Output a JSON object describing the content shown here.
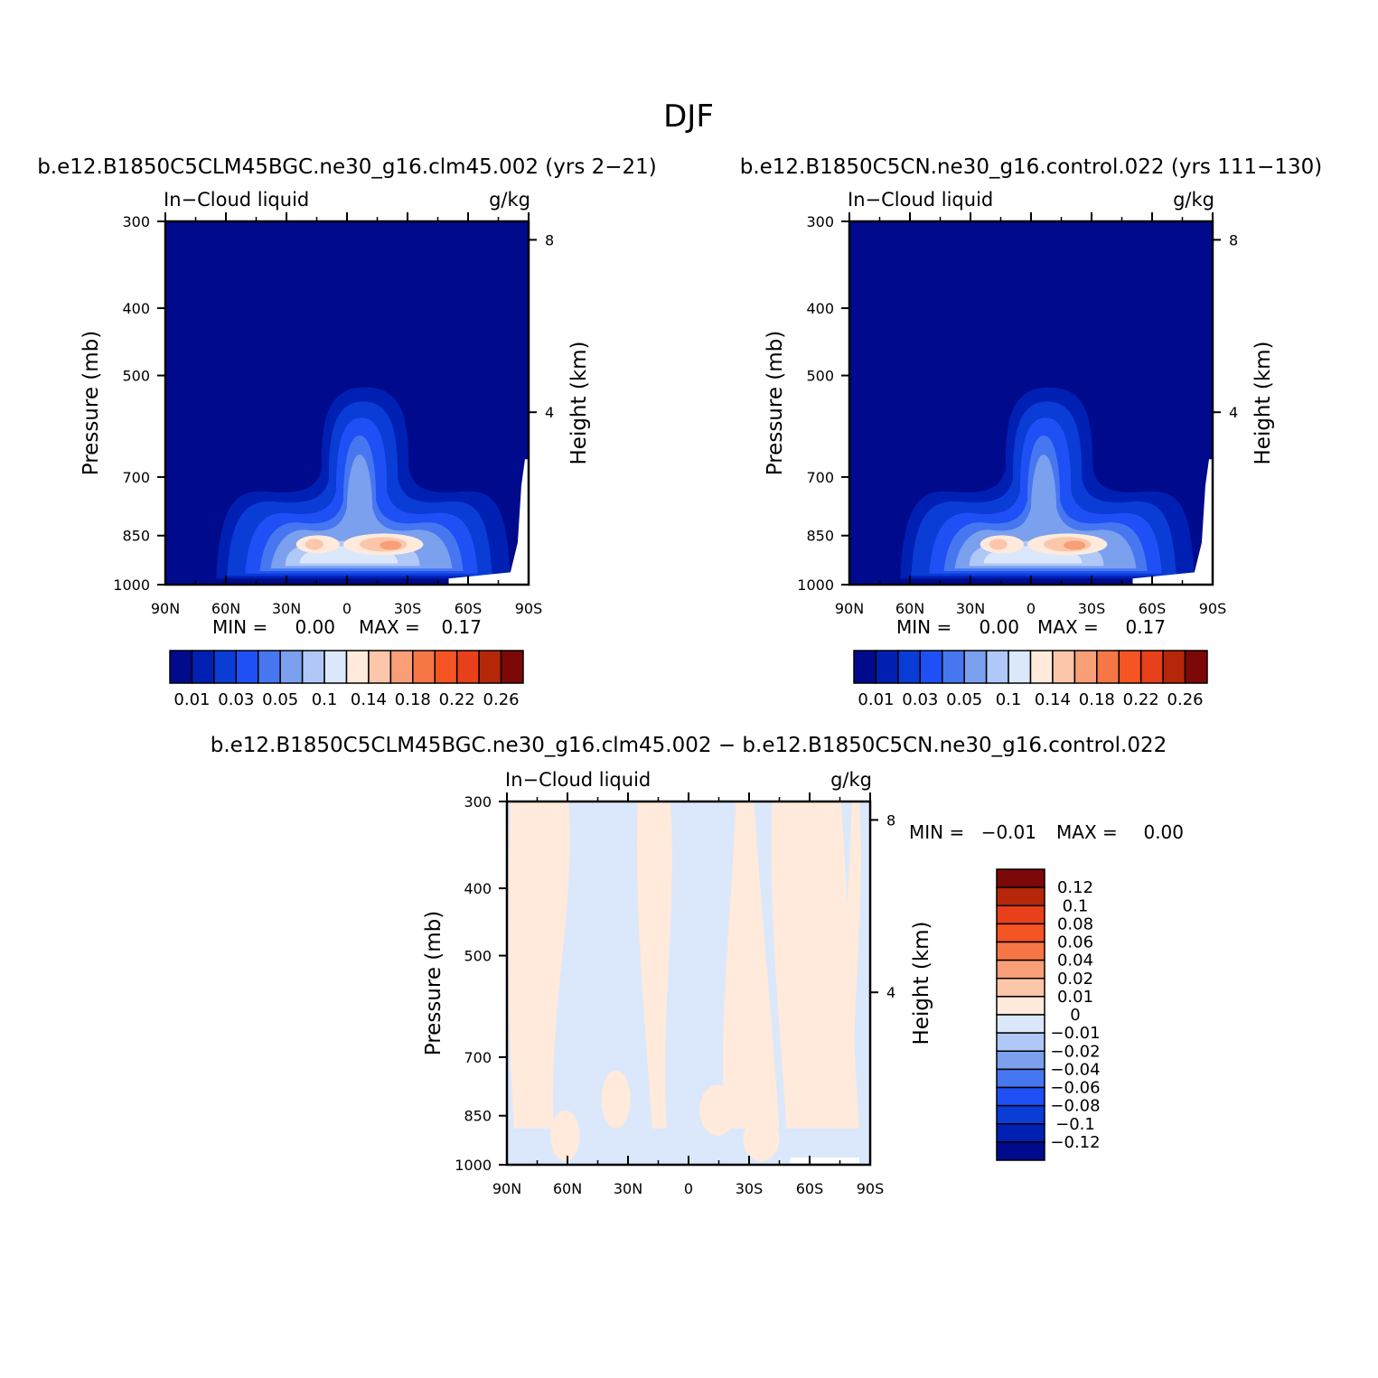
{
  "figure": {
    "title": "DJF"
  },
  "chart_data": [
    {
      "type": "heatmap",
      "title": "b.e12.B1850C5CLM45BGC.ne30_g16.clm45.002 (yrs 2-21)",
      "left_label": "In-Cloud liquid",
      "right_label": "g/kg",
      "ylabel": "Pressure (mb)",
      "ylabel_right": "Height (km)",
      "x_ticks": [
        "90N",
        "60N",
        "30N",
        "0",
        "30S",
        "60S",
        "90S"
      ],
      "y_ticks": [
        "300",
        "400",
        "500",
        "700",
        "850",
        "1000"
      ],
      "y_right_ticks": [
        "8",
        "4"
      ],
      "ylim": [
        1000,
        300
      ],
      "log_pressure_axis": true,
      "stats": {
        "min_label": "MIN =",
        "min": "0.00",
        "max_label": "MAX =",
        "max": "0.17"
      },
      "colorbar_labels": [
        "0.01",
        "0.03",
        "0.05",
        "0.1",
        "0.14",
        "0.18",
        "0.22",
        "0.26"
      ],
      "colorbar_colors": [
        "#000a8c",
        "#0020b4",
        "#0a3cd6",
        "#1f50f5",
        "#4677f0",
        "#7aa0ee",
        "#b0c8f7",
        "#dbe8fb",
        "#ffeadb",
        "#fcc6aa",
        "#f89f78",
        "#f77645",
        "#f55423",
        "#e8401a",
        "#b52708",
        "#7d0808"
      ],
      "max_location": {
        "lat": "20S",
        "pressure": 875,
        "value": 0.17
      }
    },
    {
      "type": "heatmap",
      "title": "b.e12.B1850C5CN.ne30_g16.control.022 (yrs 111-130)",
      "left_label": "In-Cloud liquid",
      "right_label": "g/kg",
      "ylabel": "Pressure (mb)",
      "ylabel_right": "Height (km)",
      "x_ticks": [
        "90N",
        "60N",
        "30N",
        "0",
        "30S",
        "60S",
        "90S"
      ],
      "y_ticks": [
        "300",
        "400",
        "500",
        "700",
        "850",
        "1000"
      ],
      "y_right_ticks": [
        "8",
        "4"
      ],
      "ylim": [
        1000,
        300
      ],
      "log_pressure_axis": true,
      "stats": {
        "min_label": "MIN =",
        "min": "0.00",
        "max_label": "MAX =",
        "max": "0.17"
      },
      "colorbar_labels": [
        "0.01",
        "0.03",
        "0.05",
        "0.1",
        "0.14",
        "0.18",
        "0.22",
        "0.26"
      ],
      "colorbar_colors": [
        "#000a8c",
        "#0020b4",
        "#0a3cd6",
        "#1f50f5",
        "#4677f0",
        "#7aa0ee",
        "#b0c8f7",
        "#dbe8fb",
        "#ffeadb",
        "#fcc6aa",
        "#f89f78",
        "#f77645",
        "#f55423",
        "#e8401a",
        "#b52708",
        "#7d0808"
      ],
      "max_location": {
        "lat": "20S",
        "pressure": 875,
        "value": 0.17
      }
    },
    {
      "type": "heatmap",
      "title": "b.e12.B1850C5CLM45BGC.ne30_g16.clm45.002 - b.e12.B1850C5CN.ne30_g16.control.022",
      "left_label": "In-Cloud liquid",
      "right_label": "g/kg",
      "ylabel": "Pressure (mb)",
      "ylabel_right": "Height (km)",
      "x_ticks": [
        "90N",
        "60N",
        "30N",
        "0",
        "30S",
        "60S",
        "90S"
      ],
      "y_ticks": [
        "300",
        "400",
        "500",
        "700",
        "850",
        "1000"
      ],
      "y_right_ticks": [
        "8",
        "4"
      ],
      "ylim": [
        1000,
        300
      ],
      "log_pressure_axis": true,
      "stats": {
        "min_label": "MIN =",
        "min": "-0.01",
        "max_label": "MAX =",
        "max": "0.00"
      },
      "colorbar_labels": [
        "0.12",
        "0.1",
        "0.08",
        "0.06",
        "0.04",
        "0.02",
        "0.01",
        "0",
        "-0.01",
        "-0.02",
        "-0.04",
        "-0.06",
        "-0.08",
        "-0.1",
        "-0.12"
      ],
      "colorbar_colors": [
        "#7d0808",
        "#b52708",
        "#e8401a",
        "#f55423",
        "#f77645",
        "#f89f78",
        "#fcc6aa",
        "#ffeadb",
        "#dbe8fb",
        "#b0c8f7",
        "#7aa0ee",
        "#4677f0",
        "#1f50f5",
        "#0a3cd6",
        "#0020b4",
        "#000a8c"
      ],
      "pattern": "alternating bands of weak positive (peach) and weak negative (light blue) differences"
    }
  ]
}
